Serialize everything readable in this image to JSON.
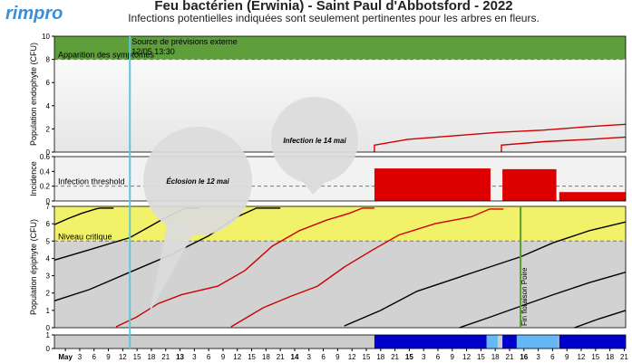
{
  "header": {
    "logo": "rimpro",
    "title": "Feu bactérien (Erwinia) - Saint Paul d'Abbotsford - 2022",
    "subtitle": "Infections potentielles indiquées sont seulement pertinentes pour les arbres en fleurs."
  },
  "callouts": [
    "Éclosion le 12 mai",
    "Infection le 14 mai"
  ],
  "forecast_line": {
    "x": 13.5,
    "label": "Source de prévisions externe",
    "time": "12/05 13:30",
    "color": "#5bc8dc"
  },
  "bloom_end_line": {
    "x": 95.3,
    "label": "Fin floraison Poire",
    "color": "#5a9e2a"
  },
  "chart_data": [
    {
      "type": "line",
      "ylabel": "Population endophyte (CFU)",
      "xlim": [
        -2.3,
        117.3
      ],
      "ylim": [
        0,
        10
      ],
      "yticks": [
        0,
        2,
        4,
        6,
        8,
        10
      ],
      "band": {
        "from": 8,
        "to": 10,
        "color": "#5e9f3c"
      },
      "threshold": {
        "value": 8,
        "label": "Apparition des symptômes"
      },
      "series": [
        {
          "color": "#cc0000",
          "x": [
            64.7,
            64.7,
            71.7,
            81.2,
            90.7,
            100.2,
            109.7,
            117.3
          ],
          "values": [
            0,
            0.6,
            1.1,
            1.4,
            1.7,
            1.9,
            2.2,
            2.4
          ]
        },
        {
          "color": "#cc0000",
          "x": [
            91.3,
            91.3,
            100.2,
            109.7,
            117.3
          ],
          "values": [
            0,
            0.6,
            0.9,
            1.1,
            1.3
          ]
        }
      ]
    },
    {
      "type": "bar",
      "ylabel": "Incidence",
      "xlim": [
        -2.3,
        117.3
      ],
      "ylim": [
        0,
        0.6
      ],
      "yticks": [
        0,
        0.2,
        0.4,
        0.6
      ],
      "threshold": {
        "value": 0.2,
        "label": "Infection threshold"
      },
      "color": "#dd0000",
      "start": [
        64.7,
        91.5,
        103.4
      ],
      "end": [
        89.0,
        102.8,
        117.3
      ],
      "values": [
        0.44,
        0.43,
        0.12
      ]
    },
    {
      "type": "line",
      "ylabel": "Population épiphyte (CFU)",
      "xlim": [
        -2.3,
        117.3
      ],
      "ylim": [
        0,
        7
      ],
      "yticks": [
        0,
        1,
        2,
        3,
        4,
        5,
        6,
        7
      ],
      "band": {
        "from": 5,
        "to": 7,
        "color": "#f2f26a"
      },
      "threshold": {
        "value": 5,
        "label": "Niveau critique"
      },
      "series": [
        {
          "color": "#000000",
          "x": [
            -2.3,
            0.6,
            3.4,
            6.3,
            7.2,
            10.1
          ],
          "values": [
            5.95,
            6.3,
            6.6,
            6.85,
            6.9,
            6.9
          ]
        },
        {
          "color": "#000000",
          "x": [
            -2.3,
            5,
            13.5,
            20,
            25,
            28
          ],
          "values": [
            3.9,
            4.5,
            5.2,
            6.2,
            6.9,
            6.9
          ]
        },
        {
          "color": "#000000",
          "x": [
            -2.3,
            5,
            13.5,
            22,
            30,
            36,
            40,
            45
          ],
          "values": [
            1.55,
            2.2,
            3.2,
            4.2,
            5.3,
            6.4,
            6.9,
            6.9
          ]
        },
        {
          "color": "#000000",
          "x": [
            58.4,
            66,
            73.6,
            81.2,
            88.8,
            95.4,
            102.1,
            109.7,
            117.3
          ],
          "values": [
            0.1,
            1.0,
            2.1,
            2.8,
            3.5,
            4.1,
            4.9,
            5.6,
            6.1
          ]
        },
        {
          "color": "#000000",
          "x": [
            82.5,
            88.8,
            95.4,
            102.1,
            109.7,
            117.3
          ],
          "values": [
            0,
            0.6,
            1.25,
            1.9,
            2.6,
            3.2
          ]
        },
        {
          "color": "#000000",
          "x": [
            106.6,
            111.6,
            117.3
          ],
          "values": [
            0,
            0.5,
            1.0
          ]
        },
        {
          "color": "#cc0000",
          "x": [
            10.6,
            14.8,
            19.5,
            24.3,
            31.9,
            37.6,
            43.3,
            49,
            54.6,
            59.4,
            62.2,
            64.7
          ],
          "values": [
            0.05,
            0.6,
            1.4,
            1.9,
            2.4,
            3.3,
            4.7,
            5.6,
            6.2,
            6.6,
            6.9,
            6.9
          ]
        },
        {
          "color": "#cc0000",
          "x": [
            34.7,
            41.4,
            47.1,
            52.8,
            58.4,
            64.1,
            69.8,
            77.4,
            85,
            88.8,
            91.7
          ],
          "values": [
            0.05,
            1.15,
            1.8,
            2.4,
            3.5,
            4.45,
            5.35,
            6.0,
            6.4,
            6.85,
            6.85
          ]
        }
      ]
    },
    {
      "type": "bar",
      "xlim": [
        -2.3,
        117.3
      ],
      "ylim": [
        0,
        1
      ],
      "yticks": [
        0,
        1
      ],
      "start": [
        64.7,
        88.2,
        91.5,
        94.5,
        103.4
      ],
      "end": [
        88.2,
        90.5,
        94.5,
        103.2,
        117.3
      ],
      "values": [
        1,
        1,
        1,
        1,
        1
      ],
      "colors": [
        "#0000cc",
        "#66b8f5",
        "#0000cc",
        "#66b8f5",
        "#0000cc"
      ],
      "xticks": [
        {
          "value": 0,
          "label": "May"
        },
        3,
        6,
        9,
        12,
        15,
        18,
        21,
        {
          "value": 24,
          "label": "13"
        },
        {
          "value": 27,
          "label": "3"
        },
        {
          "value": 30,
          "label": "6"
        },
        {
          "value": 33,
          "label": "9"
        },
        {
          "value": 36,
          "label": "12"
        },
        {
          "value": 39,
          "label": "15"
        },
        {
          "value": 42,
          "label": "18"
        },
        {
          "value": 45,
          "label": "21"
        },
        {
          "value": 48,
          "label": "14"
        },
        {
          "value": 51,
          "label": "3"
        },
        {
          "value": 54,
          "label": "6"
        },
        {
          "value": 57,
          "label": "9"
        },
        {
          "value": 60,
          "label": "12"
        },
        {
          "value": 63,
          "label": "15"
        },
        {
          "value": 66,
          "label": "18"
        },
        {
          "value": 69,
          "label": "21"
        },
        {
          "value": 72,
          "label": "15"
        },
        {
          "value": 75,
          "label": "3"
        },
        {
          "value": 78,
          "label": "6"
        },
        {
          "value": 81,
          "label": "9"
        },
        {
          "value": 84,
          "label": "12"
        },
        {
          "value": 87,
          "label": "15"
        },
        {
          "value": 90,
          "label": "18"
        },
        {
          "value": 93,
          "label": "21"
        },
        {
          "value": 96,
          "label": "16"
        },
        {
          "value": 99,
          "label": "3"
        },
        {
          "value": 102,
          "label": "6"
        },
        {
          "value": 105,
          "label": "9"
        },
        {
          "value": 108,
          "label": "12"
        },
        {
          "value": 111,
          "label": "15"
        },
        {
          "value": 114,
          "label": "18"
        },
        {
          "value": 117,
          "label": "21"
        }
      ]
    }
  ]
}
